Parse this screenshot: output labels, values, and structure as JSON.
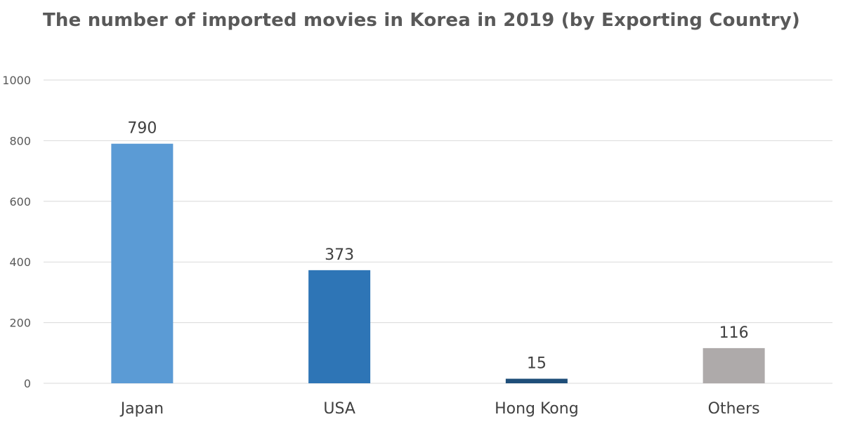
{
  "chart_data": {
    "type": "bar",
    "title": "The number of imported movies in Korea in 2019 (by Exporting Country)",
    "xlabel": "",
    "ylabel": "",
    "categories": [
      "Japan",
      "USA",
      "Hong Kong",
      "Others"
    ],
    "values": [
      790,
      373,
      15,
      116
    ],
    "data_labels": [
      "790",
      "373",
      "15",
      "116"
    ],
    "bar_colors": [
      "#5B9BD5",
      "#2E75B6",
      "#1F4E79",
      "#AEAAAA"
    ],
    "ylim": [
      0,
      1000
    ],
    "yticks": [
      0,
      200,
      400,
      600,
      800,
      1000
    ],
    "ytick_labels": [
      "0",
      "200",
      "400",
      "600",
      "800",
      "1000"
    ],
    "grid": true,
    "grid_color": "#D9D9D9",
    "legend": "none"
  }
}
